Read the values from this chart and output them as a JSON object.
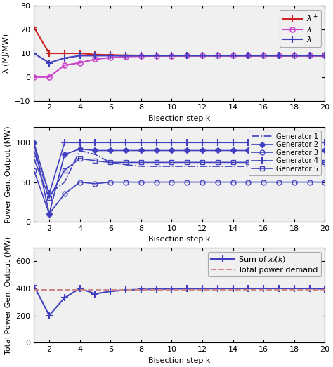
{
  "k": [
    1,
    2,
    3,
    4,
    5,
    6,
    7,
    8,
    9,
    10,
    11,
    12,
    13,
    14,
    15,
    16,
    17,
    18,
    19,
    20
  ],
  "lambda_plus": [
    21,
    10,
    10,
    10,
    9.5,
    9.3,
    9.2,
    9.1,
    9.05,
    9.02,
    9.01,
    9.0,
    9.0,
    9.0,
    9.0,
    9.0,
    9.0,
    9.0,
    9.0,
    9.0
  ],
  "lambda_minus": [
    0,
    0,
    5,
    6,
    7.5,
    8.2,
    8.6,
    8.8,
    8.9,
    8.95,
    8.98,
    9.0,
    9.0,
    9.0,
    9.0,
    9.0,
    9.0,
    9.0,
    9.0,
    9.0
  ],
  "lambda": [
    10,
    6,
    8,
    9,
    9,
    9,
    9,
    9,
    9,
    9,
    9,
    9,
    9,
    9,
    9,
    9,
    9,
    9,
    9,
    9
  ],
  "gen1": [
    90,
    35,
    50,
    90,
    85,
    75,
    72,
    70,
    70,
    70,
    70,
    70,
    70,
    70,
    70,
    70,
    70,
    70,
    70,
    70
  ],
  "gen2": [
    100,
    10,
    85,
    92,
    90,
    90,
    90,
    90,
    90,
    90,
    90,
    90,
    90,
    90,
    90,
    90,
    90,
    90,
    90,
    90
  ],
  "gen3": [
    65,
    10,
    35,
    50,
    48,
    50,
    50,
    50,
    50,
    50,
    50,
    50,
    50,
    50,
    50,
    50,
    50,
    50,
    50,
    50
  ],
  "gen4": [
    100,
    35,
    100,
    100,
    100,
    100,
    100,
    100,
    100,
    100,
    100,
    100,
    100,
    100,
    100,
    100,
    100,
    100,
    100,
    100
  ],
  "gen5": [
    80,
    30,
    65,
    80,
    77,
    75,
    75,
    75,
    75,
    75,
    75,
    75,
    75,
    75,
    75,
    75,
    75,
    75,
    75,
    75
  ],
  "total_sum": [
    420,
    200,
    330,
    400,
    360,
    378,
    388,
    392,
    394,
    396,
    397,
    398,
    398,
    399,
    399,
    399,
    399,
    399,
    399,
    395
  ],
  "power_demand": 390,
  "bg_color": "#ffffff",
  "axes_bg": "#f0f0f0",
  "blue_purple": "#4040c0",
  "red_color": "#cc2222",
  "magenta_color": "#cc44cc",
  "pink_dashed": "#cc8888",
  "subplot1_ylabel": "λ (MJ/MW)",
  "subplot2_ylabel": "Power Gen. Output (MW)",
  "subplot3_ylabel": "Total Power Gen. Output (MW)",
  "xlabel": "Bisection step k",
  "ylim1": [
    -10,
    30
  ],
  "ylim2": [
    0,
    120
  ],
  "ylim3": [
    0,
    700
  ],
  "yticks1": [
    -10,
    0,
    10,
    20,
    30
  ],
  "yticks2": [
    0,
    50,
    100
  ],
  "yticks3": [
    0,
    200,
    400,
    600
  ],
  "xticks": [
    2,
    4,
    6,
    8,
    10,
    12,
    14,
    16,
    18,
    20
  ]
}
